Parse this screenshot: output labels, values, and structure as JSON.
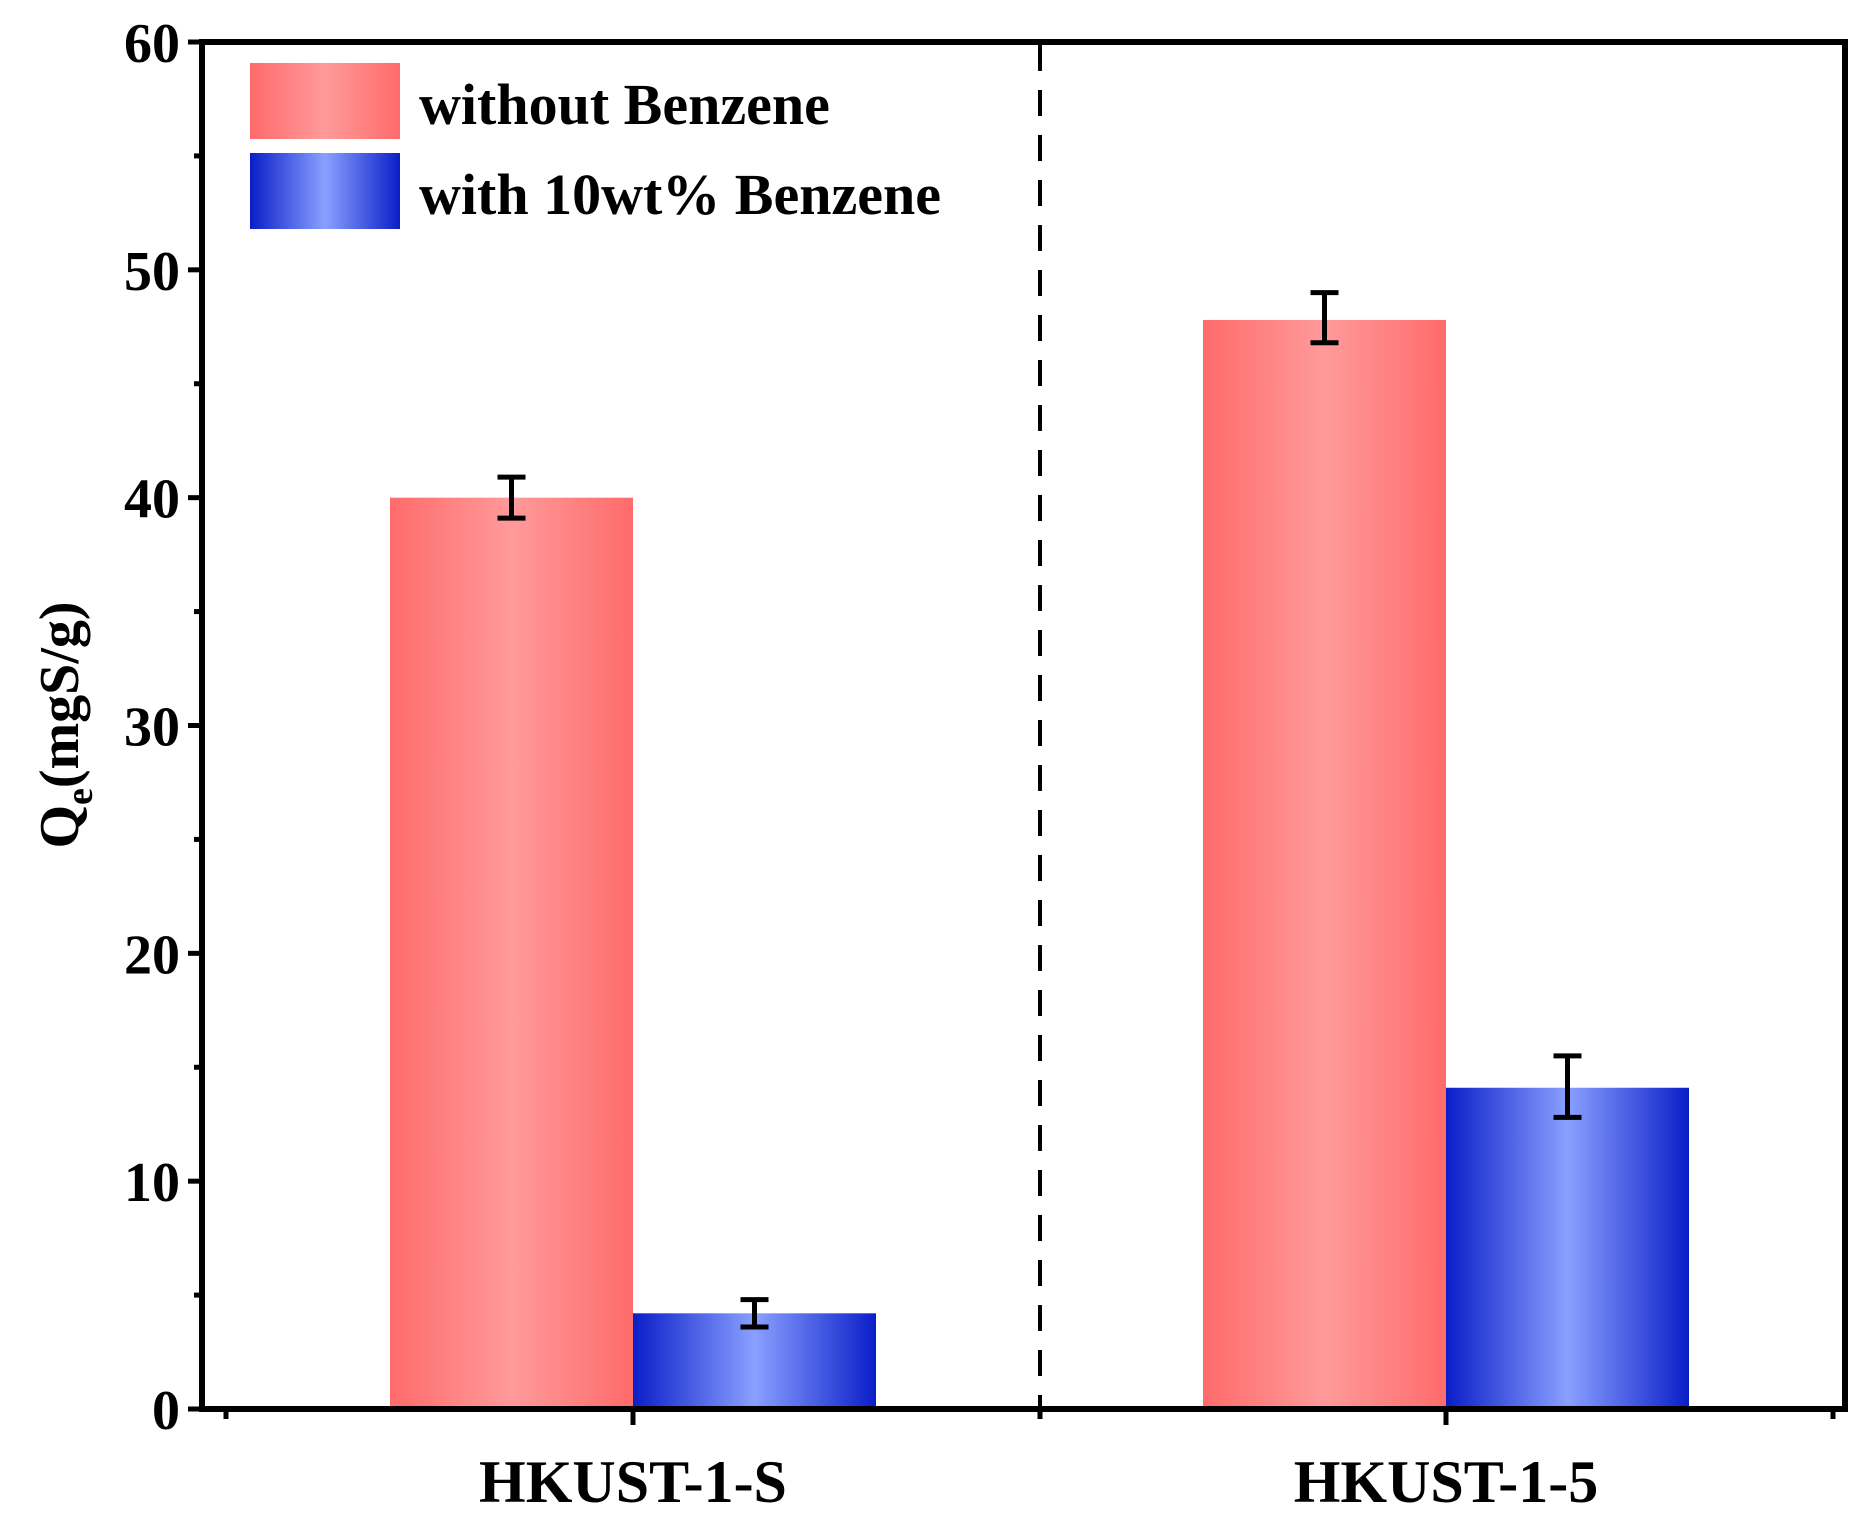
{
  "chart_data": {
    "type": "bar",
    "title": "",
    "xlabel": "",
    "ylabel": {
      "main": "Q",
      "subscript": "e",
      "rest": "(mgS/g)"
    },
    "ylim": [
      0,
      60
    ],
    "y_ticks": [
      0,
      10,
      20,
      30,
      40,
      50,
      60
    ],
    "y_minor_ticks": [
      5,
      15,
      25,
      35,
      45,
      55
    ],
    "categories": [
      "HKUST-1-S",
      "HKUST-1-5"
    ],
    "series": [
      {
        "name": "without Benzene",
        "values": [
          40.0,
          47.8
        ],
        "error_low": [
          39.1,
          46.8
        ],
        "error_high": [
          40.9,
          49.0
        ],
        "color_edge": "#ff6b6b",
        "color_center": "#ff9a9a"
      },
      {
        "name": "with 10wt% Benzene",
        "values": [
          4.2,
          14.1
        ],
        "error_low": [
          3.6,
          12.8
        ],
        "error_high": [
          4.8,
          15.5
        ],
        "color_edge": "#0a1ec8",
        "color_center": "#8aa0ff"
      }
    ],
    "separator": "dashed vertical line between groups",
    "legend_position": "top-left",
    "grid": false
  }
}
